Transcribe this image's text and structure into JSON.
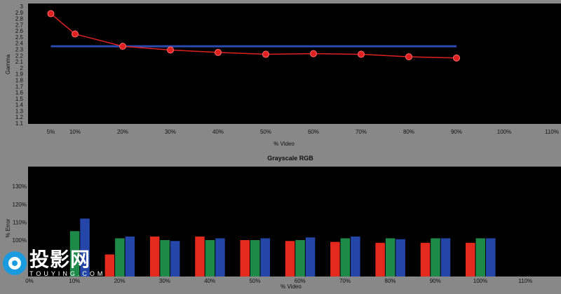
{
  "chart_data": [
    {
      "type": "line",
      "title": "",
      "xlabel": "% Video",
      "ylabel": "Gamma",
      "ylim": [
        1.1,
        3.0
      ],
      "y_ticks": [
        "1.1",
        "1.2",
        "1.3",
        "1.4",
        "1.5",
        "1.6",
        "1.7",
        "1.8",
        "1.9",
        "2",
        "2.1",
        "2.2",
        "2.3",
        "2.4",
        "2.5",
        "2.6",
        "2.7",
        "2.8",
        "2.9",
        "3"
      ],
      "x_ticks": [
        "5%",
        "10%",
        "20%",
        "30%",
        "40%",
        "50%",
        "60%",
        "70%",
        "80%",
        "90%",
        "100%",
        "110%"
      ],
      "x_tick_values": [
        5,
        10,
        20,
        30,
        40,
        50,
        60,
        70,
        80,
        90,
        100,
        110
      ],
      "series": [
        {
          "name": "",
          "color": "#e02020",
          "x": [
            5,
            10,
            20,
            30,
            40,
            50,
            60,
            70,
            80,
            90
          ],
          "values": [
            2.88,
            2.55,
            2.35,
            2.29,
            2.25,
            2.22,
            2.23,
            2.22,
            2.18,
            2.16
          ]
        }
      ],
      "reference": {
        "name": "",
        "color": "#2a4ab0",
        "y": 2.35,
        "x_start": 5,
        "x_end": 90
      }
    },
    {
      "type": "bar",
      "title": "Grayscale RGB",
      "xlabel": "% Video",
      "ylabel": "% Error",
      "y_ticks": [
        "100%",
        "110%",
        "120%",
        "130%"
      ],
      "y_tick_values": [
        100,
        110,
        120,
        130
      ],
      "x_ticks": [
        "0%",
        "10%",
        "20%",
        "30%",
        "40%",
        "50%",
        "60%",
        "70%",
        "80%",
        "90%",
        "100%",
        "110%"
      ],
      "categories": [
        "10%",
        "20%",
        "30%",
        "40%",
        "50%",
        "60%",
        "70%",
        "80%",
        "90%",
        "100%"
      ],
      "series": [
        {
          "name": "Red",
          "color": "#e42a1e",
          "values": [
            null,
            92,
            102,
            102,
            100,
            99.5,
            99,
            98.5,
            98.5,
            98.5
          ]
        },
        {
          "name": "Green",
          "color": "#1e8a4a",
          "values": [
            105,
            101,
            100,
            100,
            100,
            100,
            101,
            101,
            101,
            101
          ]
        },
        {
          "name": "Blue",
          "color": "#2446a8",
          "values": [
            112,
            102,
            99.5,
            101,
            101,
            101.5,
            102,
            100.5,
            101,
            101
          ]
        }
      ]
    }
  ],
  "watermark": {
    "cn": "投影网",
    "en": "TOUYING.COM"
  }
}
